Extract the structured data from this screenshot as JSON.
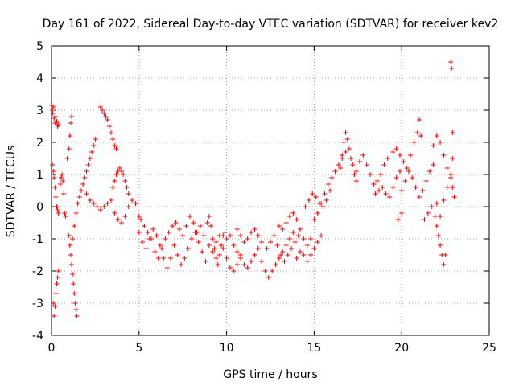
{
  "chart_data": {
    "type": "scatter",
    "title": "Day 161 of 2022, Sidereal Day-to-day VTEC variation (SDTVAR) for receiver kev2",
    "xlabel": "GPS time / hours",
    "ylabel": "SDTVAR / TECUs",
    "xlim": [
      0,
      25
    ],
    "ylim": [
      -4,
      5
    ],
    "xticks": [
      0,
      5,
      10,
      15,
      20,
      25
    ],
    "yticks": [
      -4,
      -3,
      -2,
      -1,
      0,
      1,
      2,
      3,
      4,
      5
    ],
    "grid": true,
    "marker": "+",
    "series": [
      {
        "name": "SDTVAR",
        "color": "#ff0000",
        "points": [
          [
            0.02,
            3.15
          ],
          [
            0.05,
            3.0
          ],
          [
            0.08,
            2.9
          ],
          [
            0.1,
            3.1
          ],
          [
            0.15,
            2.75
          ],
          [
            0.2,
            2.6
          ],
          [
            0.25,
            2.8
          ],
          [
            0.3,
            2.65
          ],
          [
            0.35,
            2.5
          ],
          [
            0.4,
            2.55
          ],
          [
            0.05,
            1.3
          ],
          [
            0.1,
            1.1
          ],
          [
            0.15,
            0.9
          ],
          [
            0.2,
            0.6
          ],
          [
            0.25,
            0.3
          ],
          [
            0.3,
            0.0
          ],
          [
            0.35,
            -0.1
          ],
          [
            0.4,
            -0.2
          ],
          [
            0.1,
            -3.0
          ],
          [
            0.15,
            -3.4
          ],
          [
            0.2,
            -3.1
          ],
          [
            0.25,
            -2.7
          ],
          [
            0.3,
            -2.4
          ],
          [
            0.35,
            -2.2
          ],
          [
            0.4,
            -2.0
          ],
          [
            0.5,
            0.7
          ],
          [
            0.55,
            0.9
          ],
          [
            0.6,
            1.0
          ],
          [
            0.65,
            0.8
          ],
          [
            0.7,
            0.4
          ],
          [
            0.75,
            -0.2
          ],
          [
            0.8,
            -0.3
          ],
          [
            0.9,
            1.5
          ],
          [
            1.0,
            1.8
          ],
          [
            1.05,
            2.2
          ],
          [
            1.1,
            2.6
          ],
          [
            1.15,
            2.8
          ],
          [
            1.0,
            -0.9
          ],
          [
            1.05,
            -1.2
          ],
          [
            1.1,
            -1.5
          ],
          [
            1.15,
            -1.8
          ],
          [
            1.2,
            -2.1
          ],
          [
            1.25,
            -2.4
          ],
          [
            1.3,
            -2.7
          ],
          [
            1.35,
            -3.0
          ],
          [
            1.4,
            -3.2
          ],
          [
            1.45,
            -3.4
          ],
          [
            1.2,
            -1.0
          ],
          [
            1.3,
            -0.6
          ],
          [
            1.4,
            -0.2
          ],
          [
            1.5,
            0.1
          ],
          [
            1.6,
            0.3
          ],
          [
            1.7,
            0.5
          ],
          [
            1.8,
            0.7
          ],
          [
            1.9,
            0.9
          ],
          [
            2.0,
            1.1
          ],
          [
            2.1,
            1.3
          ],
          [
            2.2,
            1.5
          ],
          [
            2.3,
            1.7
          ],
          [
            2.4,
            1.9
          ],
          [
            2.5,
            2.1
          ],
          [
            2.0,
            0.4
          ],
          [
            2.2,
            0.2
          ],
          [
            2.4,
            0.1
          ],
          [
            2.6,
            0.0
          ],
          [
            2.8,
            -0.1
          ],
          [
            3.0,
            0.0
          ],
          [
            3.2,
            0.1
          ],
          [
            3.4,
            0.2
          ],
          [
            2.8,
            3.1
          ],
          [
            2.9,
            3.0
          ],
          [
            3.0,
            2.9
          ],
          [
            3.1,
            2.8
          ],
          [
            3.2,
            2.7
          ],
          [
            3.3,
            2.5
          ],
          [
            3.4,
            2.3
          ],
          [
            3.5,
            2.1
          ],
          [
            3.6,
            1.9
          ],
          [
            3.7,
            1.8
          ],
          [
            3.5,
            0.6
          ],
          [
            3.6,
            0.8
          ],
          [
            3.7,
            1.0
          ],
          [
            3.8,
            1.1
          ],
          [
            3.9,
            1.2
          ],
          [
            4.0,
            1.1
          ],
          [
            4.1,
            1.0
          ],
          [
            4.2,
            0.8
          ],
          [
            4.3,
            0.6
          ],
          [
            4.4,
            0.4
          ],
          [
            3.6,
            -0.2
          ],
          [
            3.8,
            -0.4
          ],
          [
            4.0,
            -0.5
          ],
          [
            4.2,
            -0.3
          ],
          [
            4.4,
            0.0
          ],
          [
            4.6,
            0.2
          ],
          [
            4.8,
            0.1
          ],
          [
            5.0,
            -0.3
          ],
          [
            5.0,
            -0.8
          ],
          [
            5.2,
            -1.1
          ],
          [
            5.4,
            -1.3
          ],
          [
            5.6,
            -1.0
          ],
          [
            5.8,
            -0.7
          ],
          [
            6.0,
            -0.9
          ],
          [
            6.2,
            -1.2
          ],
          [
            6.4,
            -1.6
          ],
          [
            6.6,
            -1.9
          ],
          [
            6.8,
            -1.6
          ],
          [
            5.1,
            -0.4
          ],
          [
            5.3,
            -0.6
          ],
          [
            5.5,
            -0.8
          ],
          [
            5.7,
            -1.0
          ],
          [
            5.9,
            -1.4
          ],
          [
            6.1,
            -1.6
          ],
          [
            6.3,
            -1.3
          ],
          [
            6.5,
            -1.0
          ],
          [
            6.7,
            -0.8
          ],
          [
            6.9,
            -0.6
          ],
          [
            7.0,
            -1.2
          ],
          [
            7.2,
            -1.5
          ],
          [
            7.4,
            -1.8
          ],
          [
            7.6,
            -1.6
          ],
          [
            7.8,
            -1.3
          ],
          [
            8.0,
            -1.0
          ],
          [
            8.2,
            -0.8
          ],
          [
            8.4,
            -1.1
          ],
          [
            8.6,
            -1.4
          ],
          [
            8.8,
            -1.7
          ],
          [
            7.1,
            -0.5
          ],
          [
            7.3,
            -0.7
          ],
          [
            7.5,
            -0.9
          ],
          [
            7.7,
            -0.6
          ],
          [
            7.9,
            -0.3
          ],
          [
            8.1,
            -0.5
          ],
          [
            8.3,
            -0.8
          ],
          [
            8.5,
            -0.6
          ],
          [
            8.7,
            -0.9
          ],
          [
            8.9,
            -0.5
          ],
          [
            9.0,
            -0.3
          ],
          [
            9.1,
            -0.6
          ],
          [
            9.2,
            -1.0
          ],
          [
            9.3,
            -1.3
          ],
          [
            9.4,
            -1.6
          ],
          [
            9.5,
            -1.8
          ],
          [
            9.6,
            -1.5
          ],
          [
            9.7,
            -1.2
          ],
          [
            9.8,
            -0.9
          ],
          [
            9.9,
            -0.8
          ],
          [
            9.0,
            -1.2
          ],
          [
            9.2,
            -1.4
          ],
          [
            9.4,
            -1.1
          ],
          [
            9.6,
            -0.9
          ],
          [
            9.8,
            -1.3
          ],
          [
            10.0,
            -1.6
          ],
          [
            10.2,
            -1.9
          ],
          [
            10.4,
            -2.0
          ],
          [
            10.6,
            -1.8
          ],
          [
            10.8,
            -1.5
          ],
          [
            10.0,
            -1.0
          ],
          [
            10.2,
            -0.9
          ],
          [
            10.4,
            -1.2
          ],
          [
            10.6,
            -1.4
          ],
          [
            10.8,
            -1.6
          ],
          [
            11.0,
            -1.8
          ],
          [
            11.2,
            -1.9
          ],
          [
            11.4,
            -1.7
          ],
          [
            11.6,
            -1.5
          ],
          [
            11.8,
            -1.3
          ],
          [
            10.6,
            -0.7
          ],
          [
            10.8,
            -0.9
          ],
          [
            11.0,
            -1.1
          ],
          [
            11.2,
            -1.0
          ],
          [
            11.4,
            -0.8
          ],
          [
            11.6,
            -0.7
          ],
          [
            11.8,
            -0.9
          ],
          [
            12.0,
            -1.1
          ],
          [
            12.0,
            -1.7
          ],
          [
            12.2,
            -2.0
          ],
          [
            12.4,
            -2.2
          ],
          [
            12.6,
            -2.0
          ],
          [
            12.8,
            -1.8
          ],
          [
            13.0,
            -1.6
          ],
          [
            13.2,
            -1.4
          ],
          [
            13.4,
            -1.2
          ],
          [
            13.6,
            -1.0
          ],
          [
            13.8,
            -0.8
          ],
          [
            12.3,
            -1.3
          ],
          [
            12.5,
            -1.1
          ],
          [
            12.7,
            -0.9
          ],
          [
            12.9,
            -1.2
          ],
          [
            13.1,
            -1.5
          ],
          [
            13.3,
            -1.7
          ],
          [
            13.5,
            -1.5
          ],
          [
            13.7,
            -1.3
          ],
          [
            13.9,
            -1.1
          ],
          [
            14.1,
            -0.9
          ],
          [
            13.0,
            -0.6
          ],
          [
            13.2,
            -0.7
          ],
          [
            13.4,
            -0.5
          ],
          [
            13.6,
            -0.3
          ],
          [
            13.8,
            -0.2
          ],
          [
            14.0,
            -0.4
          ],
          [
            14.2,
            -0.7
          ],
          [
            14.4,
            -1.0
          ],
          [
            14.6,
            -1.2
          ],
          [
            14.8,
            -1.0
          ],
          [
            14.0,
            -1.6
          ],
          [
            14.2,
            -1.4
          ],
          [
            14.4,
            -1.5
          ],
          [
            14.6,
            -1.7
          ],
          [
            14.8,
            -1.5
          ],
          [
            15.0,
            -1.3
          ],
          [
            15.2,
            -1.1
          ],
          [
            15.4,
            -0.9
          ],
          [
            14.5,
            0.0
          ],
          [
            14.7,
            0.2
          ],
          [
            14.9,
            0.4
          ],
          [
            15.1,
            0.3
          ],
          [
            15.3,
            0.1
          ],
          [
            15.5,
            0.0
          ],
          [
            15.7,
            0.2
          ],
          [
            15.9,
            0.5
          ],
          [
            15.0,
            -0.4
          ],
          [
            15.2,
            -0.2
          ],
          [
            15.4,
            0.1
          ],
          [
            15.6,
            0.4
          ],
          [
            15.8,
            0.7
          ],
          [
            16.0,
            0.9
          ],
          [
            16.2,
            1.1
          ],
          [
            16.4,
            1.3
          ],
          [
            16.6,
            1.5
          ],
          [
            16.8,
            1.7
          ],
          [
            16.5,
            1.2
          ],
          [
            16.6,
            1.6
          ],
          [
            16.7,
            2.0
          ],
          [
            16.8,
            2.3
          ],
          [
            16.9,
            2.1
          ],
          [
            17.0,
            1.8
          ],
          [
            17.1,
            1.5
          ],
          [
            17.2,
            1.3
          ],
          [
            17.3,
            1.0
          ],
          [
            17.4,
            0.8
          ],
          [
            17.4,
            1.1
          ],
          [
            17.6,
            1.4
          ],
          [
            17.8,
            1.6
          ],
          [
            18.0,
            1.3
          ],
          [
            18.2,
            1.0
          ],
          [
            18.4,
            0.7
          ],
          [
            18.6,
            0.8
          ],
          [
            18.8,
            1.0
          ],
          [
            19.0,
            1.3
          ],
          [
            19.2,
            1.5
          ],
          [
            18.5,
            0.4
          ],
          [
            18.7,
            0.5
          ],
          [
            18.9,
            0.6
          ],
          [
            19.1,
            0.4
          ],
          [
            19.3,
            0.3
          ],
          [
            19.5,
            0.6
          ],
          [
            19.7,
            0.9
          ],
          [
            19.9,
            1.1
          ],
          [
            19.5,
            1.7
          ],
          [
            19.7,
            1.8
          ],
          [
            19.9,
            1.6
          ],
          [
            20.1,
            1.4
          ],
          [
            20.3,
            1.2
          ],
          [
            20.5,
            1.6
          ],
          [
            20.7,
            2.0
          ],
          [
            20.9,
            2.3
          ],
          [
            21.0,
            2.7
          ],
          [
            21.1,
            2.2
          ],
          [
            20.0,
            0.5
          ],
          [
            20.2,
            0.8
          ],
          [
            20.4,
            1.1
          ],
          [
            20.6,
            0.9
          ],
          [
            20.8,
            0.6
          ],
          [
            21.0,
            0.3
          ],
          [
            21.2,
            0.5
          ],
          [
            21.4,
            0.8
          ],
          [
            21.6,
            1.1
          ],
          [
            21.8,
            1.3
          ],
          [
            21.3,
            -0.4
          ],
          [
            21.5,
            -0.2
          ],
          [
            21.7,
            0.0
          ],
          [
            21.9,
            -0.3
          ],
          [
            22.0,
            -0.6
          ],
          [
            22.1,
            -0.9
          ],
          [
            22.2,
            -1.2
          ],
          [
            22.3,
            -1.5
          ],
          [
            22.4,
            -1.8
          ],
          [
            22.5,
            -1.5
          ],
          [
            21.8,
            1.9
          ],
          [
            22.0,
            2.2
          ],
          [
            22.2,
            2.0
          ],
          [
            22.4,
            1.6
          ],
          [
            22.6,
            1.2
          ],
          [
            22.8,
            0.9
          ],
          [
            22.9,
            0.6
          ],
          [
            23.0,
            0.3
          ],
          [
            22.0,
            0.1
          ],
          [
            22.2,
            -0.3
          ],
          [
            22.4,
            0.2
          ],
          [
            22.6,
            0.6
          ],
          [
            22.8,
            1.0
          ],
          [
            22.9,
            1.5
          ],
          [
            22.8,
            4.5
          ],
          [
            22.85,
            4.3
          ],
          [
            22.9,
            2.3
          ],
          [
            20.0,
            -0.2
          ],
          [
            19.8,
            -0.4
          ]
        ]
      }
    ]
  }
}
